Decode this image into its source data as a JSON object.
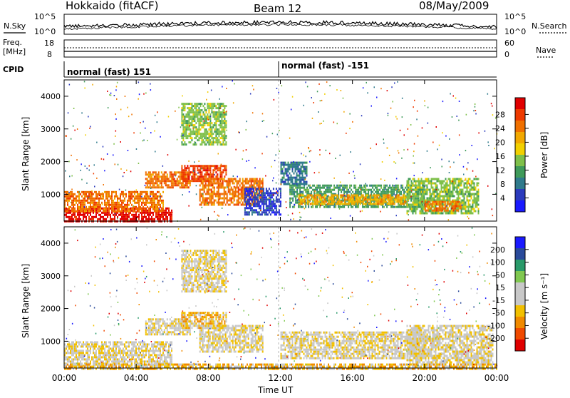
{
  "header": {
    "station": "Hokkaido (fitACF)",
    "beam": "Beam 12",
    "date": "08/May/2009"
  },
  "noise_panel": {
    "left_label": "N.Sky",
    "right_label": "N.Search",
    "left_ticks": [
      "10^5",
      "10^0"
    ],
    "right_ticks": [
      "10^5",
      "10^0"
    ]
  },
  "freq_panel": {
    "left_label_1": "Freq.",
    "left_label_2": "[MHz]",
    "right_label": "Nave",
    "left_ticks": [
      "18",
      "8"
    ],
    "right_ticks": [
      "60",
      "0"
    ]
  },
  "cpid_panel": {
    "label": "CPID",
    "segments": [
      {
        "text": "normal (fast) 151",
        "start_hour": 0
      },
      {
        "text": "normal (fast) -151",
        "start_hour": 12
      }
    ]
  },
  "colors": {
    "power": [
      "#1a1aff",
      "#2b3bbd",
      "#2f7a8c",
      "#3f9a5a",
      "#7fc04a",
      "#f2d000",
      "#f2a800",
      "#f07000",
      "#ee3a00",
      "#e00000"
    ],
    "velocity": [
      "#e00000",
      "#f04a00",
      "#f08a00",
      "#f2c000",
      "#c8c8c8",
      "#c8c8c8",
      "#80c850",
      "#2a9a6a",
      "#2a4a9a",
      "#1a1aff"
    ]
  },
  "chart_data": [
    {
      "type": "heatmap",
      "name": "power",
      "xlabel": "Time UT",
      "ylabel": "Slant Range [km]",
      "xlim": [
        0,
        24
      ],
      "ylim": [
        180,
        4500
      ],
      "x_ticks": [
        "00:00",
        "04:00",
        "08:00",
        "12:00",
        "16:00",
        "20:00",
        "00:00"
      ],
      "y_ticks": [
        "1000",
        "2000",
        "3000",
        "4000"
      ],
      "colorbar_label": "Power [dB]",
      "colorbar_ticks": [
        "4",
        "8",
        "12",
        "16",
        "20",
        "24",
        "28"
      ],
      "echo_regions": [
        {
          "x": [
            0,
            6
          ],
          "y": [
            200,
            600
          ],
          "level": 9
        },
        {
          "x": [
            0,
            5.5
          ],
          "y": [
            500,
            1100
          ],
          "level": 7
        },
        {
          "x": [
            4.5,
            7
          ],
          "y": [
            1200,
            1700
          ],
          "level": 7
        },
        {
          "x": [
            6.5,
            9
          ],
          "y": [
            1400,
            1900
          ],
          "level": 8
        },
        {
          "x": [
            7.5,
            11
          ],
          "y": [
            700,
            1500
          ],
          "level": 7
        },
        {
          "x": [
            10,
            12
          ],
          "y": [
            400,
            1200
          ],
          "level": 1
        },
        {
          "x": [
            12,
            13.5
          ],
          "y": [
            1300,
            2000
          ],
          "level": 2
        },
        {
          "x": [
            12.5,
            20
          ],
          "y": [
            600,
            1300
          ],
          "level": 3
        },
        {
          "x": [
            13,
            19
          ],
          "y": [
            700,
            1000
          ],
          "level": 6
        },
        {
          "x": [
            19,
            23
          ],
          "y": [
            400,
            1500
          ],
          "level": 4
        },
        {
          "x": [
            20,
            22
          ],
          "y": [
            500,
            800
          ],
          "level": 7
        },
        {
          "x": [
            6.5,
            9
          ],
          "y": [
            2500,
            3800
          ],
          "level": 4
        }
      ]
    },
    {
      "type": "heatmap",
      "name": "velocity",
      "xlabel": "Time UT",
      "ylabel": "Slant Range [km]",
      "xlim": [
        0,
        24
      ],
      "ylim": [
        180,
        4500
      ],
      "x_ticks": [
        "00:00",
        "04:00",
        "08:00",
        "12:00",
        "16:00",
        "20:00",
        "00:00"
      ],
      "y_ticks": [
        "1000",
        "2000",
        "3000",
        "4000"
      ],
      "colorbar_label": "Velocity [m s⁻¹]",
      "colorbar_ticks": [
        "200",
        "100",
        "50",
        "15",
        "-15",
        "-50",
        "-100",
        "-200"
      ],
      "echo_regions": [
        {
          "x": [
            0,
            6
          ],
          "y": [
            250,
            1000
          ],
          "level": 4
        },
        {
          "x": [
            4.5,
            7
          ],
          "y": [
            1200,
            1700
          ],
          "level": 4
        },
        {
          "x": [
            6.5,
            9
          ],
          "y": [
            1400,
            1900
          ],
          "level": 3
        },
        {
          "x": [
            7.5,
            11
          ],
          "y": [
            700,
            1500
          ],
          "level": 4
        },
        {
          "x": [
            12,
            20
          ],
          "y": [
            500,
            1300
          ],
          "level": 4
        },
        {
          "x": [
            19,
            23.8
          ],
          "y": [
            300,
            1500
          ],
          "level": 4
        },
        {
          "x": [
            6.5,
            9
          ],
          "y": [
            2500,
            3800
          ],
          "level": 4
        },
        {
          "x": [
            0,
            24
          ],
          "y": [
            180,
            320
          ],
          "level": 3
        }
      ]
    }
  ]
}
